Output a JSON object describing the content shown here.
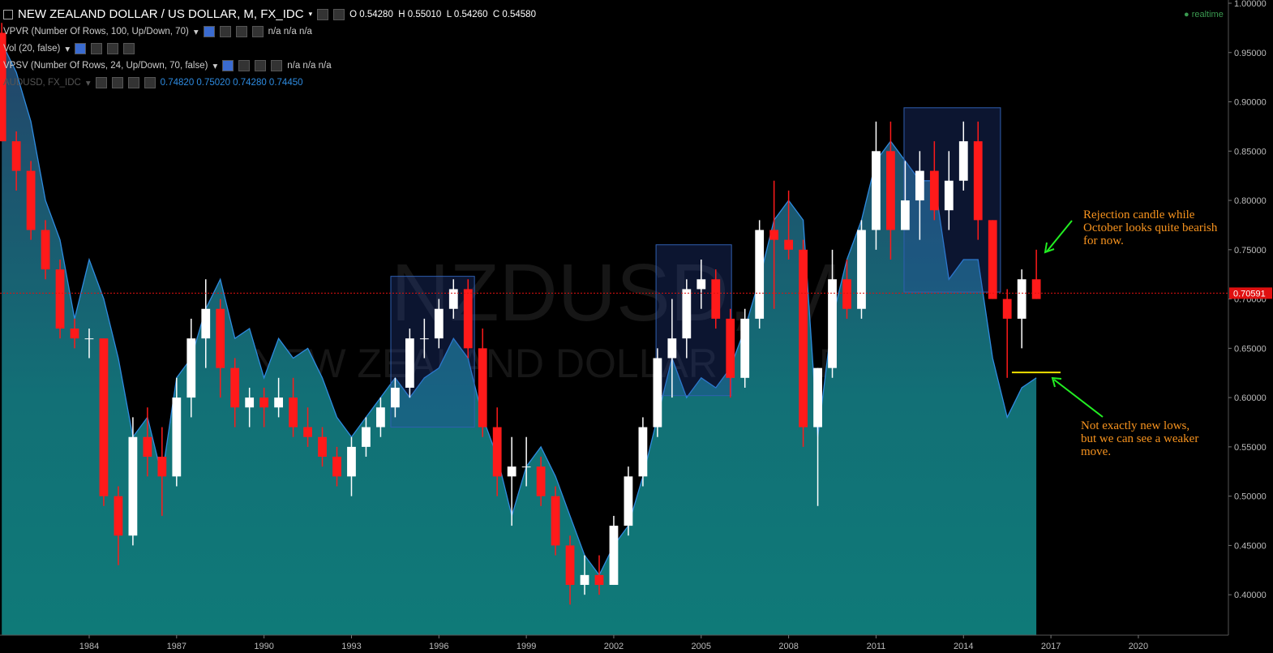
{
  "header": {
    "symbol": "NEW ZEALAND DOLLAR / US DOLLAR, M, FX_IDC",
    "ohlc_labels": [
      "O",
      "H",
      "L",
      "C"
    ],
    "ohlc_values": [
      "0.54280",
      "0.55010",
      "0.54260",
      "0.54580"
    ],
    "realtime": "realtime"
  },
  "indicators": [
    {
      "name": "VPVR (Number Of Rows, 100, Up/Down, 70)",
      "values": "n/a n/a n/a"
    },
    {
      "name": "Vol (20, false)",
      "values": ""
    },
    {
      "name": "VPSV (Number Of Rows, 24, Up/Down, 70, false)",
      "values": "n/a n/a n/a"
    }
  ],
  "compare_values": "0.74820 0.75020 0.74280 0.74450",
  "chart_data": {
    "type": "candlestick",
    "watermark": [
      "NZDUSD, M",
      "NEW ZEALAND DOLLAR / US DOLLAR"
    ],
    "x": [
      1981.0,
      1981.5,
      1982.0,
      1982.5,
      1983.0,
      1983.5,
      1984.0,
      1984.5,
      1985.0,
      1985.5,
      1986.0,
      1986.5,
      1987.0,
      1987.5,
      1988.0,
      1988.5,
      1989.0,
      1989.5,
      1990.0,
      1990.5,
      1991.0,
      1991.5,
      1992.0,
      1992.5,
      1993.0,
      1993.5,
      1994.0,
      1994.5,
      1995.0,
      1995.5,
      1996.0,
      1996.5,
      1997.0,
      1997.5,
      1998.0,
      1998.5,
      1999.0,
      1999.5,
      2000.0,
      2000.5,
      2001.0,
      2001.5,
      2002.0,
      2002.5,
      2003.0,
      2003.5,
      2004.0,
      2004.5,
      2005.0,
      2005.5,
      2006.0,
      2006.5,
      2007.0,
      2007.5,
      2008.0,
      2008.5,
      2009.0,
      2009.5,
      2010.0,
      2010.5,
      2011.0,
      2011.5,
      2012.0,
      2012.5,
      2013.0,
      2013.5,
      2014.0,
      2014.5,
      2015.0,
      2015.5,
      2016.0,
      2016.5
    ],
    "open": [
      0.97,
      0.86,
      0.83,
      0.77,
      0.73,
      0.67,
      0.66,
      0.66,
      0.5,
      0.46,
      0.56,
      0.54,
      0.52,
      0.6,
      0.66,
      0.69,
      0.63,
      0.59,
      0.6,
      0.59,
      0.6,
      0.57,
      0.56,
      0.54,
      0.52,
      0.55,
      0.57,
      0.59,
      0.61,
      0.66,
      0.66,
      0.69,
      0.71,
      0.65,
      0.57,
      0.52,
      0.53,
      0.53,
      0.5,
      0.45,
      0.41,
      0.42,
      0.41,
      0.47,
      0.52,
      0.57,
      0.64,
      0.66,
      0.71,
      0.72,
      0.68,
      0.62,
      0.68,
      0.77,
      0.76,
      0.75,
      0.57,
      0.63,
      0.72,
      0.69,
      0.77,
      0.85,
      0.77,
      0.8,
      0.83,
      0.79,
      0.82,
      0.86,
      0.78,
      0.7,
      0.68,
      0.72
    ],
    "high": [
      0.98,
      0.87,
      0.84,
      0.78,
      0.74,
      0.68,
      0.67,
      0.66,
      0.51,
      0.58,
      0.59,
      0.57,
      0.62,
      0.68,
      0.72,
      0.7,
      0.64,
      0.61,
      0.61,
      0.62,
      0.62,
      0.59,
      0.57,
      0.55,
      0.56,
      0.58,
      0.6,
      0.62,
      0.67,
      0.68,
      0.7,
      0.72,
      0.72,
      0.67,
      0.59,
      0.56,
      0.56,
      0.54,
      0.51,
      0.46,
      0.44,
      0.44,
      0.48,
      0.53,
      0.58,
      0.65,
      0.7,
      0.72,
      0.74,
      0.73,
      0.69,
      0.69,
      0.78,
      0.82,
      0.81,
      0.76,
      0.63,
      0.75,
      0.74,
      0.78,
      0.88,
      0.88,
      0.84,
      0.85,
      0.86,
      0.85,
      0.88,
      0.88,
      0.78,
      0.71,
      0.73,
      0.75
    ],
    "low": [
      0.86,
      0.81,
      0.76,
      0.72,
      0.66,
      0.65,
      0.64,
      0.49,
      0.43,
      0.45,
      0.52,
      0.48,
      0.51,
      0.58,
      0.63,
      0.6,
      0.57,
      0.57,
      0.57,
      0.58,
      0.56,
      0.55,
      0.53,
      0.51,
      0.5,
      0.54,
      0.56,
      0.58,
      0.6,
      0.64,
      0.65,
      0.68,
      0.64,
      0.56,
      0.5,
      0.47,
      0.51,
      0.49,
      0.44,
      0.39,
      0.4,
      0.4,
      0.41,
      0.46,
      0.51,
      0.56,
      0.6,
      0.64,
      0.69,
      0.67,
      0.6,
      0.61,
      0.67,
      0.69,
      0.74,
      0.55,
      0.49,
      0.62,
      0.68,
      0.68,
      0.75,
      0.74,
      0.77,
      0.76,
      0.78,
      0.77,
      0.81,
      0.76,
      0.7,
      0.62,
      0.65,
      0.7
    ],
    "close": [
      0.86,
      0.83,
      0.77,
      0.73,
      0.67,
      0.66,
      0.66,
      0.5,
      0.46,
      0.56,
      0.54,
      0.52,
      0.6,
      0.66,
      0.69,
      0.63,
      0.59,
      0.6,
      0.59,
      0.6,
      0.57,
      0.56,
      0.54,
      0.52,
      0.55,
      0.57,
      0.59,
      0.61,
      0.66,
      0.66,
      0.69,
      0.71,
      0.65,
      0.57,
      0.52,
      0.53,
      0.53,
      0.5,
      0.45,
      0.41,
      0.42,
      0.41,
      0.47,
      0.52,
      0.57,
      0.64,
      0.66,
      0.71,
      0.72,
      0.68,
      0.62,
      0.68,
      0.77,
      0.76,
      0.75,
      0.57,
      0.63,
      0.72,
      0.69,
      0.77,
      0.85,
      0.77,
      0.8,
      0.83,
      0.79,
      0.82,
      0.86,
      0.78,
      0.7,
      0.68,
      0.72,
      0.7
    ],
    "up_color": "#ffffff",
    "down_color": "#ff1a1a",
    "area": {
      "name": "AUDUSD, FX_IDC",
      "color": "#2e8be0",
      "values": [
        0.96,
        0.93,
        0.88,
        0.8,
        0.76,
        0.68,
        0.74,
        0.7,
        0.64,
        0.56,
        0.58,
        0.52,
        0.62,
        0.64,
        0.69,
        0.72,
        0.66,
        0.67,
        0.62,
        0.66,
        0.64,
        0.65,
        0.62,
        0.58,
        0.56,
        0.58,
        0.6,
        0.62,
        0.6,
        0.62,
        0.63,
        0.66,
        0.64,
        0.58,
        0.54,
        0.48,
        0.53,
        0.55,
        0.52,
        0.48,
        0.44,
        0.42,
        0.45,
        0.47,
        0.52,
        0.58,
        0.64,
        0.6,
        0.62,
        0.61,
        0.63,
        0.67,
        0.72,
        0.78,
        0.8,
        0.78,
        0.56,
        0.68,
        0.74,
        0.78,
        0.84,
        0.86,
        0.84,
        0.82,
        0.82,
        0.72,
        0.74,
        0.74,
        0.64,
        0.58,
        0.61,
        0.62
      ]
    },
    "boxes": [
      {
        "x": [
          1994.35,
          1997.22
        ],
        "y": [
          0.57,
          0.723
        ]
      },
      {
        "x": [
          2003.45,
          2006.04
        ],
        "y": [
          0.602,
          0.755
        ]
      },
      {
        "x": [
          2011.96,
          2015.27
        ],
        "y": [
          0.707,
          0.894
        ]
      }
    ],
    "support": {
      "x": [
        2015.66,
        2017.33
      ],
      "y": 0.6255,
      "color": "#f0e000"
    },
    "current_price": {
      "value": 0.70591,
      "label": "0.70591"
    },
    "annotations": [
      [
        "Rejection candle while",
        "October looks quite bearish",
        "for now."
      ],
      [
        "Not exactly new lows,",
        "but we can see a weaker",
        "move."
      ]
    ],
    "xlim": [
      1980.94,
      2023.09
    ],
    "ylim": [
      0.359,
      1.0
    ],
    "xticks": [
      1984,
      1987,
      1990,
      1993,
      1996,
      1999,
      2002,
      2005,
      2008,
      2011,
      2014,
      2017,
      2020
    ],
    "yticks": [
      {
        "value": 0.4,
        "label": "0.40000"
      },
      {
        "value": 0.45,
        "label": "0.45000"
      },
      {
        "value": 0.5,
        "label": "0.50000"
      },
      {
        "value": 0.55,
        "label": "0.55000"
      },
      {
        "value": 0.6,
        "label": "0.60000"
      },
      {
        "value": 0.65,
        "label": "0.65000"
      },
      {
        "value": 0.7,
        "label": "0.70000"
      },
      {
        "value": 0.75,
        "label": "0.75000"
      },
      {
        "value": 0.8,
        "label": "0.80000"
      },
      {
        "value": 0.85,
        "label": "0.85000"
      },
      {
        "value": 0.9,
        "label": "0.90000"
      },
      {
        "value": 0.95,
        "label": "0.95000"
      },
      {
        "value": 1.0,
        "label": "1.00000"
      }
    ]
  }
}
